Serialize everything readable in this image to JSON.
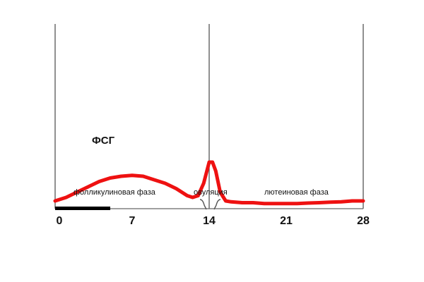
{
  "chart_data": {
    "type": "line",
    "title": "",
    "xlabel": "",
    "ylabel": "",
    "xlim": [
      0,
      28
    ],
    "ylim": [
      0,
      1
    ],
    "x_ticks": [
      "0",
      "7",
      "14",
      "21",
      "28"
    ],
    "vertical_lines": [
      0,
      14,
      28
    ],
    "series": [
      {
        "name": "ФСГ",
        "color": "#ee1111",
        "x": [
          0,
          1,
          2,
          3,
          4,
          5,
          6,
          7,
          8,
          9,
          10,
          11,
          12,
          12.5,
          13,
          13.5,
          14,
          14.3,
          14.6,
          15,
          15.5,
          16,
          17,
          18,
          19,
          20,
          21,
          22,
          23,
          24,
          25,
          26,
          27,
          28
        ],
        "y": [
          0.3,
          0.32,
          0.35,
          0.38,
          0.41,
          0.43,
          0.44,
          0.445,
          0.44,
          0.42,
          0.4,
          0.37,
          0.33,
          0.32,
          0.33,
          0.4,
          0.52,
          0.52,
          0.47,
          0.35,
          0.3,
          0.295,
          0.29,
          0.29,
          0.285,
          0.285,
          0.285,
          0.285,
          0.288,
          0.29,
          0.293,
          0.295,
          0.3,
          0.3
        ]
      }
    ],
    "annotations": [
      {
        "text": "фолликулиновая фаза"
      },
      {
        "text": "овуляция"
      },
      {
        "text": "лютеиновая фаза"
      }
    ],
    "colors": {
      "curve": "#ee1111",
      "axis": "#555555",
      "bar": "#000000"
    }
  }
}
